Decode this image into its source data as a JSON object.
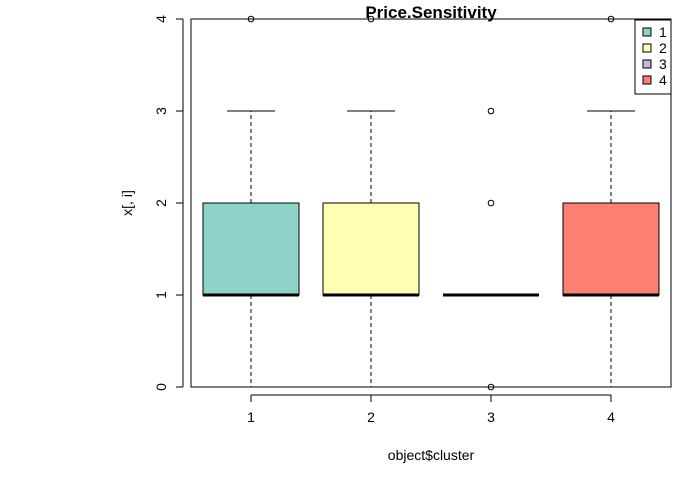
{
  "chart_data": {
    "type": "boxplot",
    "title": "Price.Sensitivity",
    "xlabel": "object$cluster",
    "ylabel": "x[, i]",
    "categories": [
      "1",
      "2",
      "3",
      "4"
    ],
    "ylim": [
      0,
      4
    ],
    "yticks": [
      "0",
      "1",
      "2",
      "3",
      "4"
    ],
    "legend": {
      "position": "top-right",
      "entries": [
        "1",
        "2",
        "3",
        "4"
      ]
    },
    "series": [
      {
        "category": "1",
        "color": "#8DD3C7",
        "whisker_low": 0,
        "q1": 1,
        "median": 1,
        "q3": 2,
        "whisker_high": 3,
        "outliers": [
          4
        ]
      },
      {
        "category": "2",
        "color": "#FFFFB3",
        "whisker_low": 0,
        "q1": 1,
        "median": 1,
        "q3": 2,
        "whisker_high": 3,
        "outliers": [
          4
        ]
      },
      {
        "category": "3",
        "color": "#BEBADA",
        "whisker_low": 1,
        "q1": 1,
        "median": 1,
        "q3": 1,
        "whisker_high": 1,
        "outliers": [
          0,
          2,
          3
        ]
      },
      {
        "category": "4",
        "color": "#FB8072",
        "whisker_low": 0,
        "q1": 1,
        "median": 1,
        "q3": 2,
        "whisker_high": 3,
        "outliers": [
          4
        ]
      }
    ]
  }
}
